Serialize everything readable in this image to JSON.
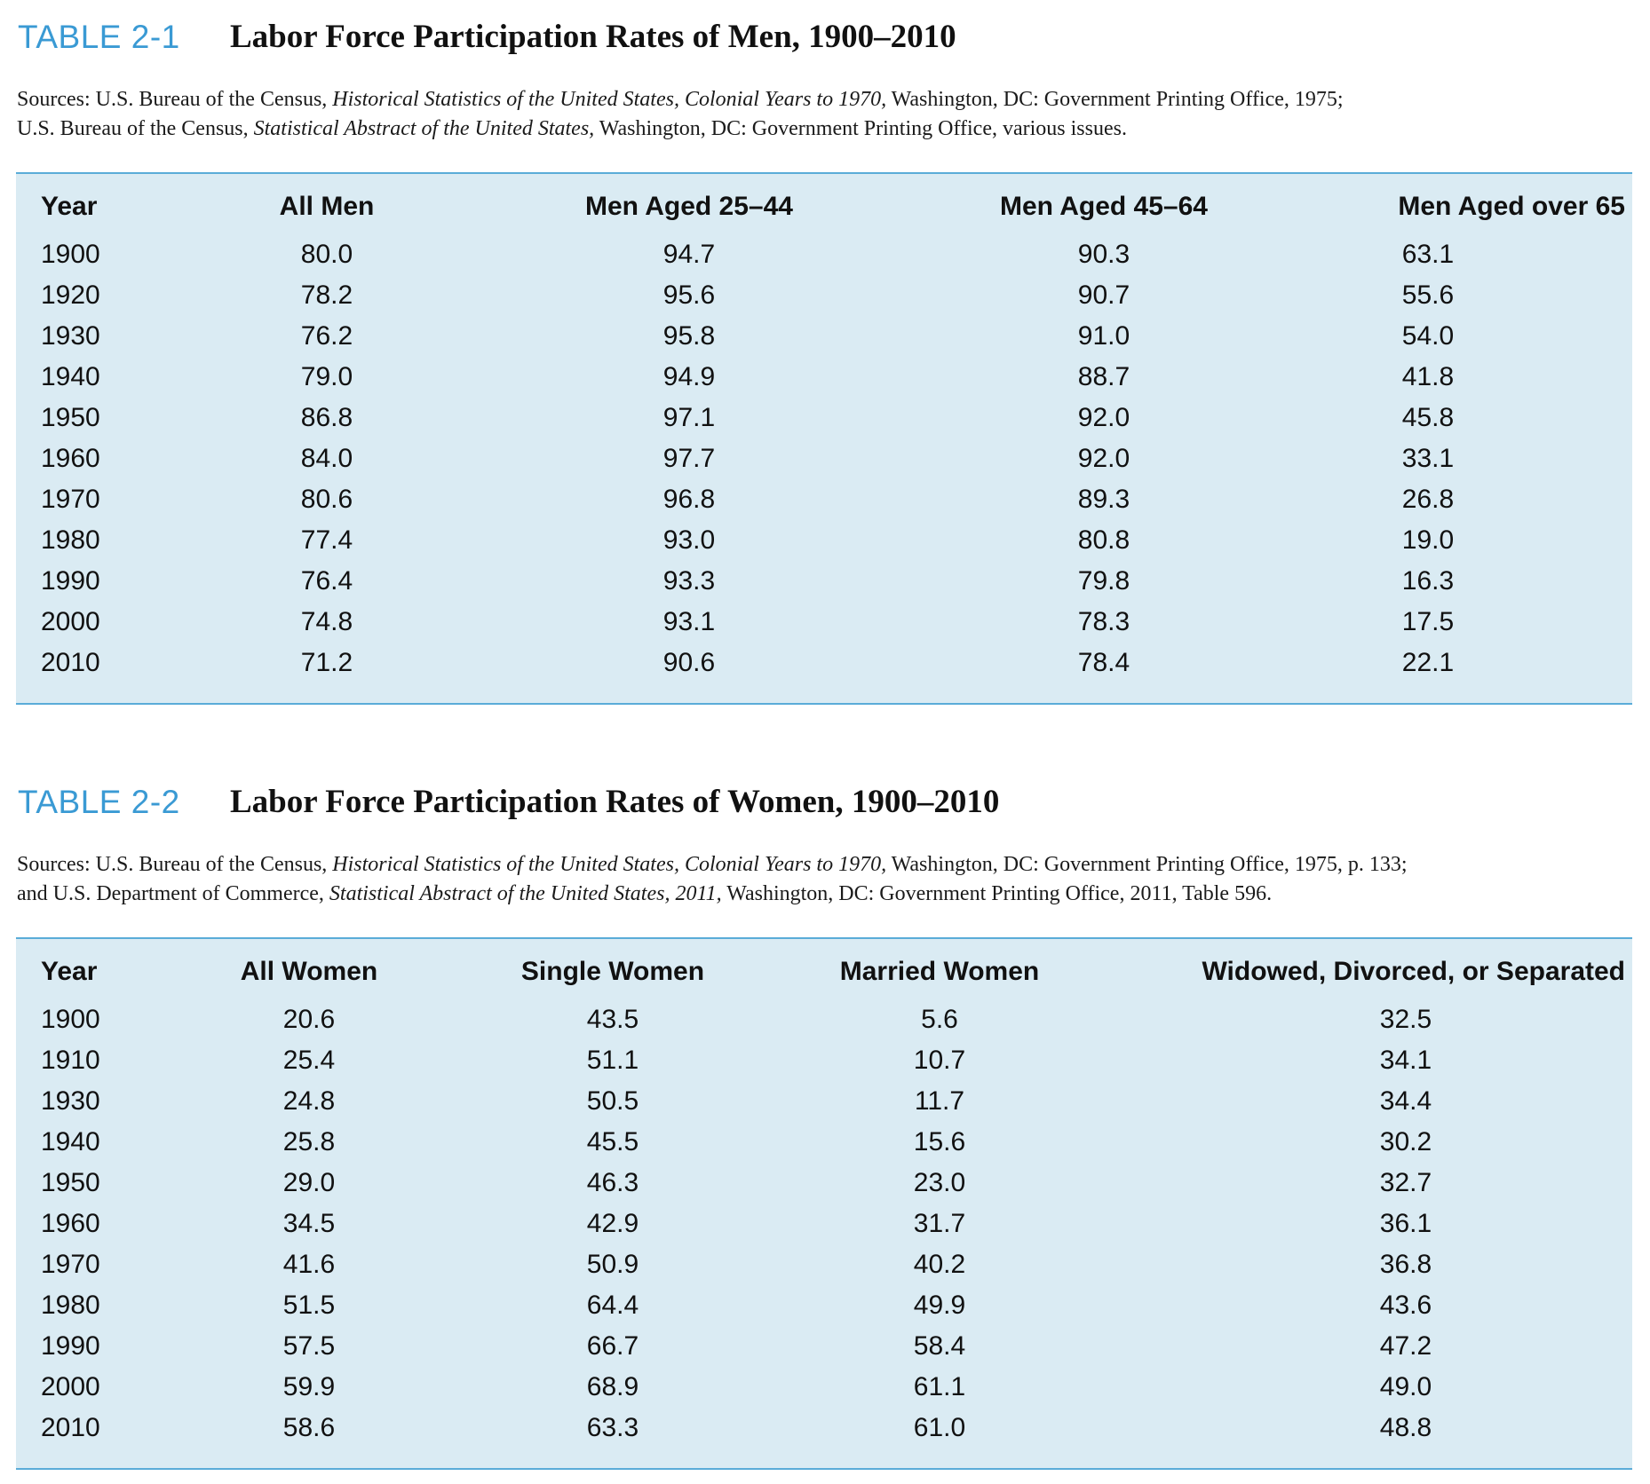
{
  "tables": [
    {
      "label": "TABLE 2-1",
      "title": "Labor Force Participation Rates of Men, 1900–2010",
      "sources": [
        {
          "text": "Sources: U.S. Bureau of the Census, ",
          "italic": false
        },
        {
          "text": "Historical Statistics of the United States, Colonial Years to 1970,",
          "italic": true
        },
        {
          "text": " Washington, DC: Government Printing Office, 1975;",
          "italic": false
        },
        {
          "text": "BR",
          "italic": false
        },
        {
          "text": "U.S. Bureau of the Census, ",
          "italic": false
        },
        {
          "text": "Statistical Abstract of the United States,",
          "italic": true
        },
        {
          "text": " Washington, DC: Government Printing Office, various issues.",
          "italic": false
        }
      ],
      "headers": [
        "Year",
        "All Men",
        "Men Aged 25–44",
        "Men Aged 45–64",
        "Men Aged over 65"
      ],
      "rows": [
        [
          "1900",
          "80.0",
          "94.7",
          "90.3",
          "63.1"
        ],
        [
          "1920",
          "78.2",
          "95.6",
          "90.7",
          "55.6"
        ],
        [
          "1930",
          "76.2",
          "95.8",
          "91.0",
          "54.0"
        ],
        [
          "1940",
          "79.0",
          "94.9",
          "88.7",
          "41.8"
        ],
        [
          "1950",
          "86.8",
          "97.1",
          "92.0",
          "45.8"
        ],
        [
          "1960",
          "84.0",
          "97.7",
          "92.0",
          "33.1"
        ],
        [
          "1970",
          "80.6",
          "96.8",
          "89.3",
          "26.8"
        ],
        [
          "1980",
          "77.4",
          "93.0",
          "80.8",
          "19.0"
        ],
        [
          "1990",
          "76.4",
          "93.3",
          "79.8",
          "16.3"
        ],
        [
          "2000",
          "74.8",
          "93.1",
          "78.3",
          "17.5"
        ],
        [
          "2010",
          "71.2",
          "90.6",
          "78.4",
          "22.1"
        ]
      ]
    },
    {
      "label": "TABLE 2-2",
      "title": "Labor Force Participation Rates of Women, 1900–2010",
      "sources": [
        {
          "text": "Sources: U.S. Bureau of the Census, ",
          "italic": false
        },
        {
          "text": "Historical Statistics of the United States, Colonial Years to 1970,",
          "italic": true
        },
        {
          "text": " Washington, DC: Government Printing Office, 1975, p. 133;",
          "italic": false
        },
        {
          "text": "BR",
          "italic": false
        },
        {
          "text": "and U.S. Department of Commerce, ",
          "italic": false
        },
        {
          "text": "Statistical Abstract of the United States, 2011,",
          "italic": true
        },
        {
          "text": " Washington, DC: Government Printing Office, 2011, Table 596.",
          "italic": false
        }
      ],
      "headers": [
        "Year",
        "All Women",
        "Single Women",
        "Married Women",
        "Widowed, Divorced, or Separated"
      ],
      "rows": [
        [
          "1900",
          "20.6",
          "43.5",
          "5.6",
          "32.5"
        ],
        [
          "1910",
          "25.4",
          "51.1",
          "10.7",
          "34.1"
        ],
        [
          "1930",
          "24.8",
          "50.5",
          "11.7",
          "34.4"
        ],
        [
          "1940",
          "25.8",
          "45.5",
          "15.6",
          "30.2"
        ],
        [
          "1950",
          "29.0",
          "46.3",
          "23.0",
          "32.7"
        ],
        [
          "1960",
          "34.5",
          "42.9",
          "31.7",
          "36.1"
        ],
        [
          "1970",
          "41.6",
          "50.9",
          "40.2",
          "36.8"
        ],
        [
          "1980",
          "51.5",
          "64.4",
          "49.9",
          "43.6"
        ],
        [
          "1990",
          "57.5",
          "66.7",
          "58.4",
          "47.2"
        ],
        [
          "2000",
          "59.9",
          "68.9",
          "61.1",
          "49.0"
        ],
        [
          "2010",
          "58.6",
          "63.3",
          "61.0",
          "48.8"
        ]
      ]
    }
  ],
  "colors": {
    "accent": "#3a9ad4",
    "table_bg": "#daebf3",
    "rule": "#5aacd8"
  }
}
